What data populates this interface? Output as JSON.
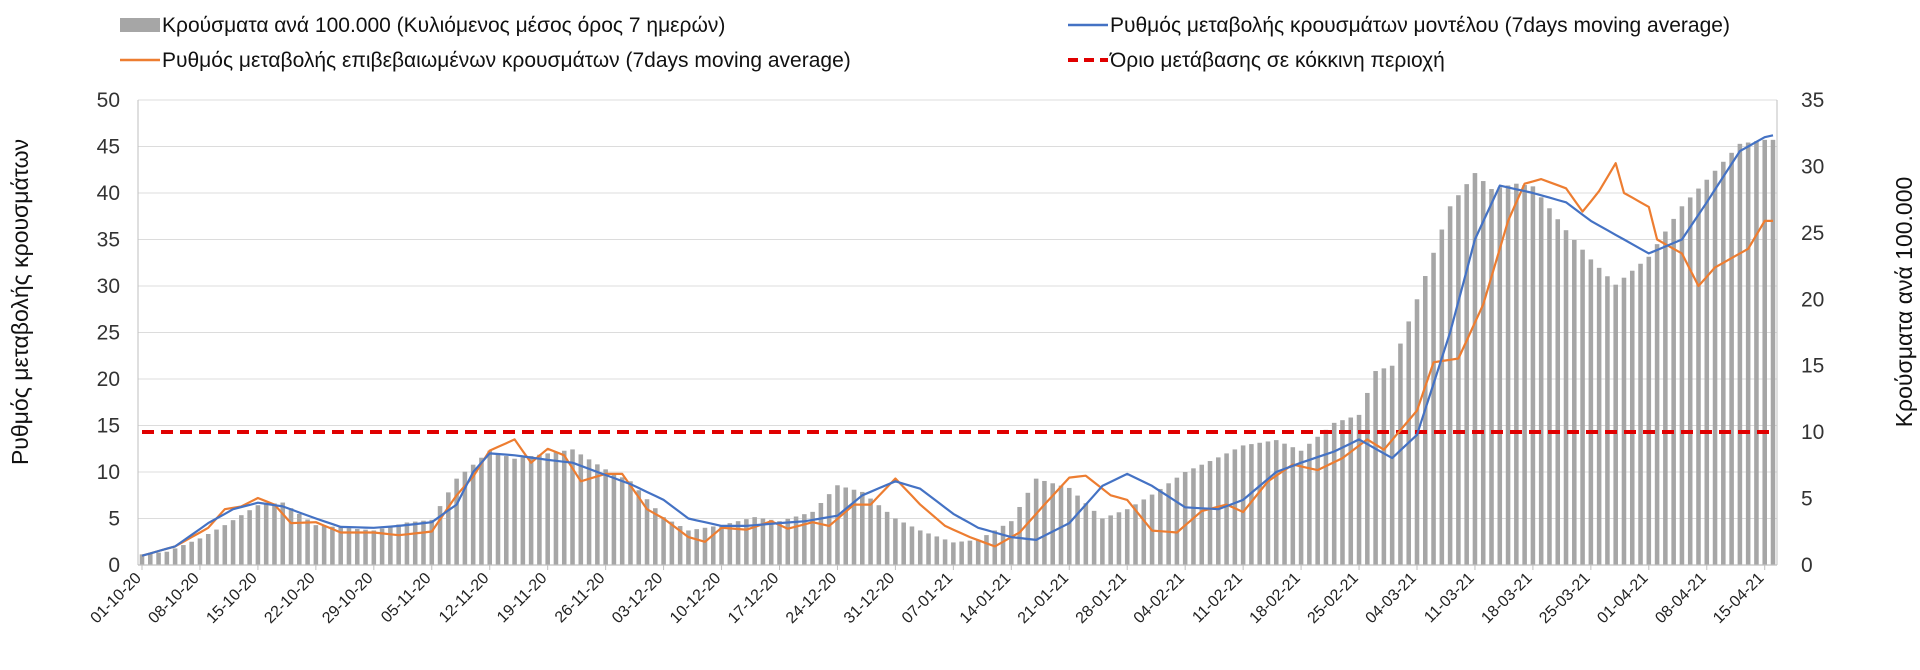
{
  "chart_data": {
    "type": "bar+line",
    "legend": {
      "bars": "Κρούσματα ανά 100.000 (Κυλιόμενος μέσος όρος 7 ημερών)",
      "model_line": "Ρυθμός μεταβολής κρουσμάτων μοντέλου (7days moving average)",
      "confirmed_line": "Ρυθμός μεταβολής επιβεβαιωμένων κρουσμάτων (7days moving average)",
      "threshold": "Όριο μετάβασης σε κόκκινη περιοχή"
    },
    "ylabel_left": "Ρυθμός μεταβολής κρουσμάτων",
    "ylabel_right": "Κρούσματα ανά 100.000",
    "ylim_left": [
      0,
      50
    ],
    "yticks_left": [
      0,
      5,
      10,
      15,
      20,
      25,
      30,
      35,
      40,
      45,
      50
    ],
    "ylim_right": [
      0,
      35
    ],
    "yticks_right": [
      0,
      5,
      10,
      15,
      20,
      25,
      30,
      35
    ],
    "x_tick_labels": [
      "01-10-20",
      "08-10-20",
      "15-10-20",
      "22-10-20",
      "29-10-20",
      "05-11-20",
      "12-11-20",
      "19-11-20",
      "26-11-20",
      "03-12-20",
      "10-12-20",
      "17-12-20",
      "24-12-20",
      "31-12-20",
      "07-01-21",
      "14-01-21",
      "21-01-21",
      "28-01-21",
      "04-02-21",
      "11-02-21",
      "18-02-21",
      "25-02-21",
      "04-03-21",
      "11-03-21",
      "18-03-21",
      "25-03-21",
      "01-04-21",
      "08-04-21",
      "15-04-21"
    ],
    "threshold_value": 14.3,
    "bars_anchors": [
      [
        0,
        0.8
      ],
      [
        3,
        1.0
      ],
      [
        7,
        2.0
      ],
      [
        10,
        3.0
      ],
      [
        14,
        4.5
      ],
      [
        17,
        4.7
      ],
      [
        21,
        3.0
      ],
      [
        28,
        2.6
      ],
      [
        32,
        3.2
      ],
      [
        35,
        3.4
      ],
      [
        38,
        6.5
      ],
      [
        42,
        8.6
      ],
      [
        45,
        8.0
      ],
      [
        49,
        8.4
      ],
      [
        52,
        8.7
      ],
      [
        56,
        7.2
      ],
      [
        59,
        6.3
      ],
      [
        63,
        3.6
      ],
      [
        66,
        2.6
      ],
      [
        70,
        3.0
      ],
      [
        74,
        3.6
      ],
      [
        77,
        3.3
      ],
      [
        81,
        4.0
      ],
      [
        84,
        6.0
      ],
      [
        87,
        5.5
      ],
      [
        91,
        3.5
      ],
      [
        94,
        2.6
      ],
      [
        98,
        1.7
      ],
      [
        101,
        1.9
      ],
      [
        105,
        3.3
      ],
      [
        108,
        6.5
      ],
      [
        112,
        5.8
      ],
      [
        116,
        3.5
      ],
      [
        119,
        4.2
      ],
      [
        122,
        5.3
      ],
      [
        126,
        7.0
      ],
      [
        130,
        8.1
      ],
      [
        133,
        9.0
      ],
      [
        137,
        9.4
      ],
      [
        140,
        8.6
      ],
      [
        144,
        10.7
      ],
      [
        147,
        11.3
      ],
      [
        149,
        14.6
      ],
      [
        151,
        15.0
      ],
      [
        154,
        20.0
      ],
      [
        158,
        27.0
      ],
      [
        161,
        29.5
      ],
      [
        163,
        28.3
      ],
      [
        166,
        28.7
      ],
      [
        168,
        28.5
      ],
      [
        172,
        25.2
      ],
      [
        175,
        23.0
      ],
      [
        178,
        21.1
      ],
      [
        182,
        23.2
      ],
      [
        186,
        27.0
      ],
      [
        189,
        29.0
      ],
      [
        193,
        31.7
      ],
      [
        196,
        32.0
      ],
      [
        197,
        32.0
      ]
    ],
    "model_line_anchors": [
      [
        0,
        1.0
      ],
      [
        4,
        2.0
      ],
      [
        8,
        4.5
      ],
      [
        11,
        6.0
      ],
      [
        14,
        6.7
      ],
      [
        17,
        6.3
      ],
      [
        21,
        5.0
      ],
      [
        24,
        4.1
      ],
      [
        28,
        4.0
      ],
      [
        31,
        4.2
      ],
      [
        35,
        4.6
      ],
      [
        38,
        6.5
      ],
      [
        40,
        10.0
      ],
      [
        42,
        12.0
      ],
      [
        45,
        11.8
      ],
      [
        49,
        11.3
      ],
      [
        52,
        11.0
      ],
      [
        55,
        10.0
      ],
      [
        59,
        8.7
      ],
      [
        63,
        7.0
      ],
      [
        66,
        5.0
      ],
      [
        70,
        4.2
      ],
      [
        73,
        4.2
      ],
      [
        77,
        4.5
      ],
      [
        80,
        4.7
      ],
      [
        84,
        5.3
      ],
      [
        87,
        7.5
      ],
      [
        91,
        9.0
      ],
      [
        94,
        8.2
      ],
      [
        98,
        5.5
      ],
      [
        101,
        4.0
      ],
      [
        105,
        3.0
      ],
      [
        108,
        2.7
      ],
      [
        112,
        4.5
      ],
      [
        116,
        8.5
      ],
      [
        119,
        9.8
      ],
      [
        122,
        8.5
      ],
      [
        126,
        6.2
      ],
      [
        130,
        6.0
      ],
      [
        133,
        7.0
      ],
      [
        137,
        10.0
      ],
      [
        140,
        11.0
      ],
      [
        144,
        12.2
      ],
      [
        147,
        13.5
      ],
      [
        149,
        12.5
      ],
      [
        151,
        11.5
      ],
      [
        154,
        14.0
      ],
      [
        158,
        25.0
      ],
      [
        161,
        35.0
      ],
      [
        164,
        40.8
      ],
      [
        168,
        40.0
      ],
      [
        172,
        39.0
      ],
      [
        175,
        37.0
      ],
      [
        178,
        35.5
      ],
      [
        182,
        33.5
      ],
      [
        186,
        35.0
      ],
      [
        189,
        39.0
      ],
      [
        193,
        44.5
      ],
      [
        196,
        46.0
      ],
      [
        197,
        46.2
      ]
    ],
    "confirmed_line_anchors": [
      [
        0,
        1.0
      ],
      [
        4,
        2.0
      ],
      [
        8,
        4.0
      ],
      [
        10,
        6.0
      ],
      [
        12,
        6.3
      ],
      [
        14,
        7.2
      ],
      [
        16,
        6.5
      ],
      [
        18,
        4.5
      ],
      [
        21,
        4.6
      ],
      [
        24,
        3.5
      ],
      [
        28,
        3.5
      ],
      [
        31,
        3.2
      ],
      [
        35,
        3.6
      ],
      [
        38,
        7.5
      ],
      [
        40,
        9.5
      ],
      [
        42,
        12.3
      ],
      [
        45,
        13.5
      ],
      [
        47,
        11.0
      ],
      [
        49,
        12.5
      ],
      [
        51,
        11.8
      ],
      [
        53,
        9.0
      ],
      [
        56,
        9.8
      ],
      [
        58,
        9.8
      ],
      [
        61,
        6.0
      ],
      [
        63,
        5.0
      ],
      [
        66,
        3.0
      ],
      [
        68,
        2.5
      ],
      [
        70,
        4.0
      ],
      [
        73,
        3.8
      ],
      [
        76,
        4.7
      ],
      [
        78,
        3.9
      ],
      [
        81,
        4.6
      ],
      [
        83,
        4.2
      ],
      [
        86,
        6.5
      ],
      [
        88,
        6.5
      ],
      [
        91,
        9.3
      ],
      [
        94,
        6.5
      ],
      [
        97,
        4.2
      ],
      [
        100,
        3.0
      ],
      [
        103,
        2.0
      ],
      [
        106,
        3.5
      ],
      [
        109,
        6.5
      ],
      [
        112,
        9.4
      ],
      [
        114,
        9.6
      ],
      [
        117,
        7.5
      ],
      [
        119,
        7.0
      ],
      [
        122,
        3.7
      ],
      [
        125,
        3.5
      ],
      [
        128,
        5.8
      ],
      [
        131,
        6.5
      ],
      [
        133,
        5.7
      ],
      [
        136,
        9.0
      ],
      [
        139,
        10.8
      ],
      [
        142,
        10.2
      ],
      [
        145,
        11.5
      ],
      [
        148,
        13.5
      ],
      [
        150,
        12.4
      ],
      [
        152,
        14.5
      ],
      [
        154,
        16.6
      ],
      [
        156,
        21.8
      ],
      [
        159,
        22.2
      ],
      [
        162,
        28.0
      ],
      [
        165,
        37.0
      ],
      [
        167,
        41.0
      ],
      [
        169,
        41.5
      ],
      [
        172,
        40.5
      ],
      [
        174,
        38.0
      ],
      [
        176,
        40.2
      ],
      [
        178,
        43.2
      ],
      [
        179,
        40.0
      ],
      [
        182,
        38.5
      ],
      [
        183,
        35.0
      ],
      [
        186,
        33.5
      ],
      [
        188,
        30.0
      ],
      [
        190,
        32.0
      ],
      [
        192,
        33.0
      ],
      [
        194,
        34.0
      ],
      [
        196,
        37.0
      ],
      [
        197,
        37.0
      ]
    ],
    "colors": {
      "bars": "#a6a6a6",
      "model_line": "#4472c4",
      "confirmed_line": "#ed7d31",
      "threshold": "#e00000"
    }
  }
}
